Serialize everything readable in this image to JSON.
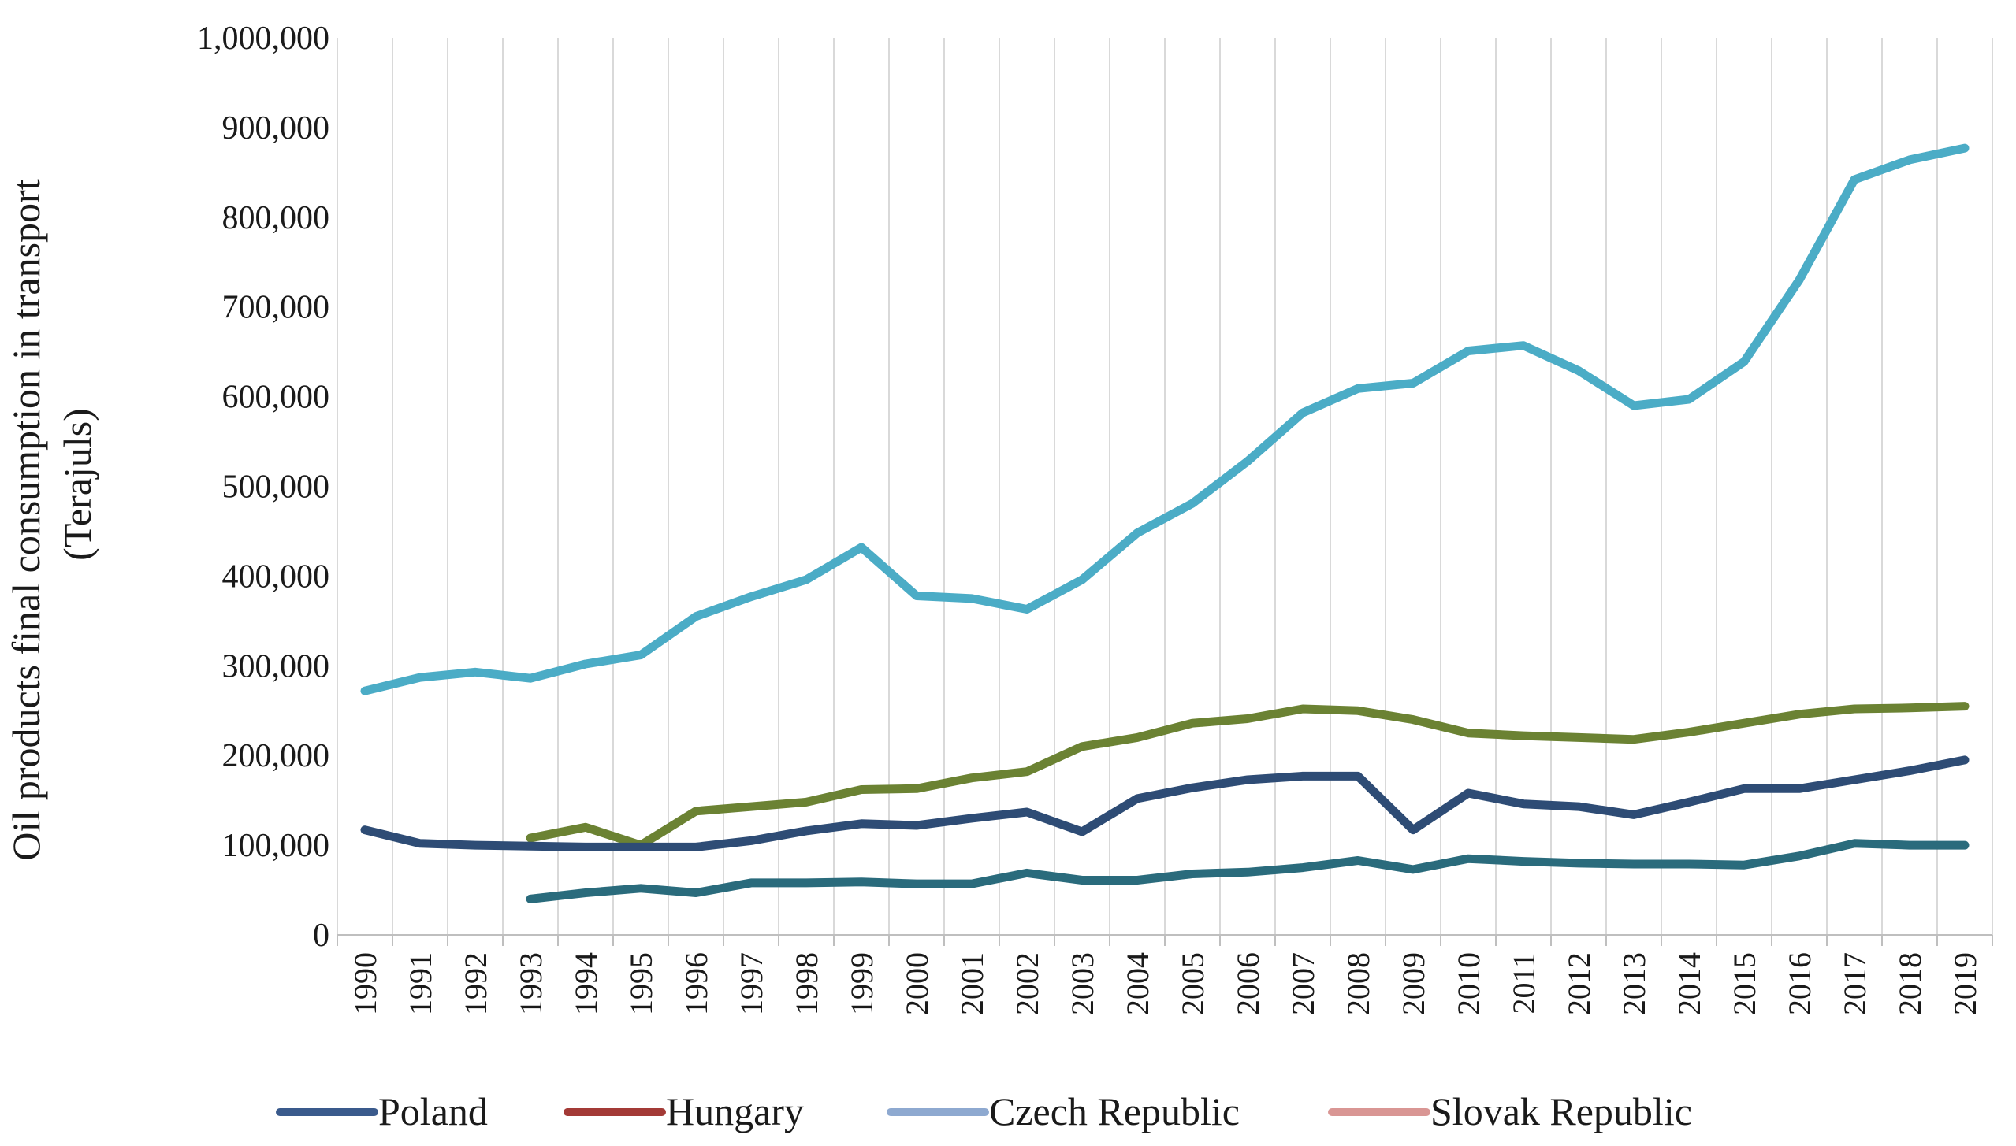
{
  "chart_data": {
    "type": "line",
    "title": "",
    "xlabel": "",
    "ylabel": "Oil products final consumption in transport (Terajuls)",
    "ylabel_lines": [
      "Oil products final consumption in transport",
      "(Terajuls)"
    ],
    "ylim": [
      0,
      1000000
    ],
    "yticks": [
      0,
      100000,
      200000,
      300000,
      400000,
      500000,
      600000,
      700000,
      800000,
      900000,
      1000000
    ],
    "ytick_labels": [
      "0",
      "100,000",
      "200,000",
      "300,000",
      "400,000",
      "500,000",
      "600,000",
      "700,000",
      "800,000",
      "900,000",
      "1,000,000"
    ],
    "grid": "vertical",
    "legend_position": "bottom",
    "categories": [
      "1990",
      "1991",
      "1992",
      "1993",
      "1994",
      "1995",
      "1996",
      "1997",
      "1998",
      "1999",
      "2000",
      "2001",
      "2002",
      "2003",
      "2004",
      "2005",
      "2006",
      "2007",
      "2008",
      "2009",
      "2010",
      "2011",
      "2012",
      "2013",
      "2014",
      "2015",
      "2016",
      "2017",
      "2018",
      "2019"
    ],
    "legend": [
      {
        "name": "Poland",
        "color": "#3a5a8c"
      },
      {
        "name": "Hungary",
        "color": "#a33a36"
      },
      {
        "name": "Czech Republic",
        "color": "#8ea9d0"
      },
      {
        "name": "Slovak Republic",
        "color": "#d99694"
      }
    ],
    "series": [
      {
        "name": "series-cyan",
        "color": "#4bacc6",
        "values": [
          272000,
          287000,
          293000,
          286000,
          302000,
          312000,
          355000,
          377000,
          396000,
          432000,
          378000,
          375000,
          363000,
          396000,
          448000,
          481000,
          528000,
          582000,
          609000,
          615000,
          651000,
          657000,
          629000,
          590000,
          597000,
          639000,
          730000,
          842000,
          864000,
          877000
        ]
      },
      {
        "name": "series-green",
        "color": "#6b8233",
        "values": [
          null,
          null,
          null,
          108000,
          120000,
          100000,
          138000,
          143000,
          148000,
          162000,
          163000,
          175000,
          182000,
          210000,
          220000,
          236000,
          241000,
          252000,
          250000,
          240000,
          225000,
          222000,
          220000,
          218000,
          226000,
          236000,
          246000,
          252000,
          253000,
          255000
        ]
      },
      {
        "name": "series-navy",
        "color": "#2e4c75",
        "values": [
          117000,
          102000,
          100000,
          99000,
          98000,
          98000,
          98000,
          105000,
          116000,
          124000,
          122000,
          130000,
          137000,
          115000,
          152000,
          164000,
          173000,
          177000,
          177000,
          117000,
          158000,
          146000,
          143000,
          134000,
          148000,
          163000,
          163000,
          173000,
          183000,
          195000
        ]
      },
      {
        "name": "series-teal",
        "color": "#2a6b7c",
        "values": [
          null,
          null,
          null,
          40000,
          47000,
          52000,
          47000,
          58000,
          58000,
          59000,
          57000,
          57000,
          69000,
          61000,
          61000,
          68000,
          70000,
          75000,
          83000,
          73000,
          85000,
          82000,
          80000,
          79000,
          79000,
          78000,
          88000,
          102000,
          100000,
          100000
        ]
      }
    ]
  }
}
